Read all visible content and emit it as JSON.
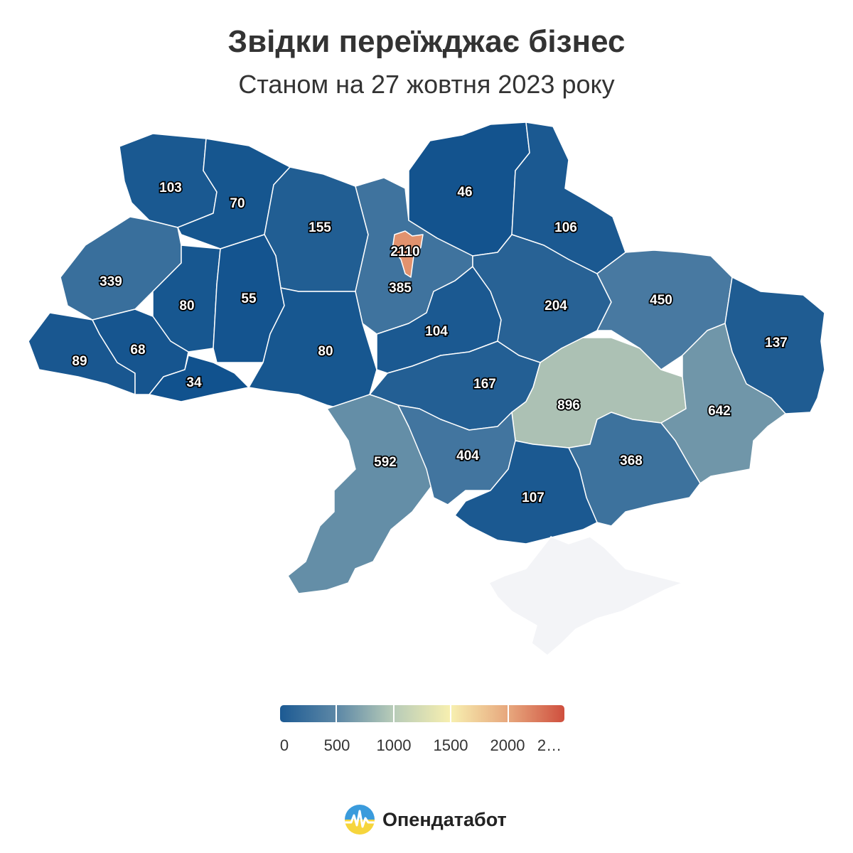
{
  "title": "Звідки переїжджає бізнес",
  "subtitle": "Станом на 27 жовтня 2023 року",
  "brand": {
    "name": "Опендатабот",
    "logo_icon": "opendatabot-logo-icon"
  },
  "colors": {
    "scale": [
      "#0d4f8c",
      "#4e7ea3",
      "#c5d3b9",
      "#fdf5b5",
      "#e9a87c",
      "#c5463c"
    ],
    "no_data": "#f3f4f7"
  },
  "legend": {
    "labels": [
      "0",
      "500",
      "1000",
      "1500",
      "2000",
      "2…"
    ],
    "segments": [
      "#1c5a93",
      "#5c87a6",
      "#b8ccb8",
      "#f7efb0",
      "#e7a77d",
      "#cf4f3e"
    ]
  },
  "chart_data": {
    "type": "choropleth",
    "title": "Звідки переїжджає бізнес",
    "subtitle": "Станом на 27 жовтня 2023 року",
    "color_range": [
      0,
      2500
    ],
    "regions": [
      {
        "label": "103",
        "value": 103
      },
      {
        "label": "70",
        "value": 70
      },
      {
        "label": "155",
        "value": 155
      },
      {
        "label": "385",
        "value": 385
      },
      {
        "label": "2110",
        "value": 2110
      },
      {
        "label": "46",
        "value": 46
      },
      {
        "label": "106",
        "value": 106
      },
      {
        "label": "339",
        "value": 339
      },
      {
        "label": "80",
        "value": 80
      },
      {
        "label": "55",
        "value": 55
      },
      {
        "label": "89",
        "value": 89
      },
      {
        "label": "68",
        "value": 68
      },
      {
        "label": "34",
        "value": 34
      },
      {
        "label": "80",
        "value": 80
      },
      {
        "label": "104",
        "value": 104
      },
      {
        "label": "204",
        "value": 204
      },
      {
        "label": "450",
        "value": 450
      },
      {
        "label": "137",
        "value": 137
      },
      {
        "label": "167",
        "value": 167
      },
      {
        "label": "896",
        "value": 896
      },
      {
        "label": "642",
        "value": 642
      },
      {
        "label": "592",
        "value": 592
      },
      {
        "label": "404",
        "value": 404
      },
      {
        "label": "368",
        "value": 368
      },
      {
        "label": "107",
        "value": 107
      }
    ]
  }
}
